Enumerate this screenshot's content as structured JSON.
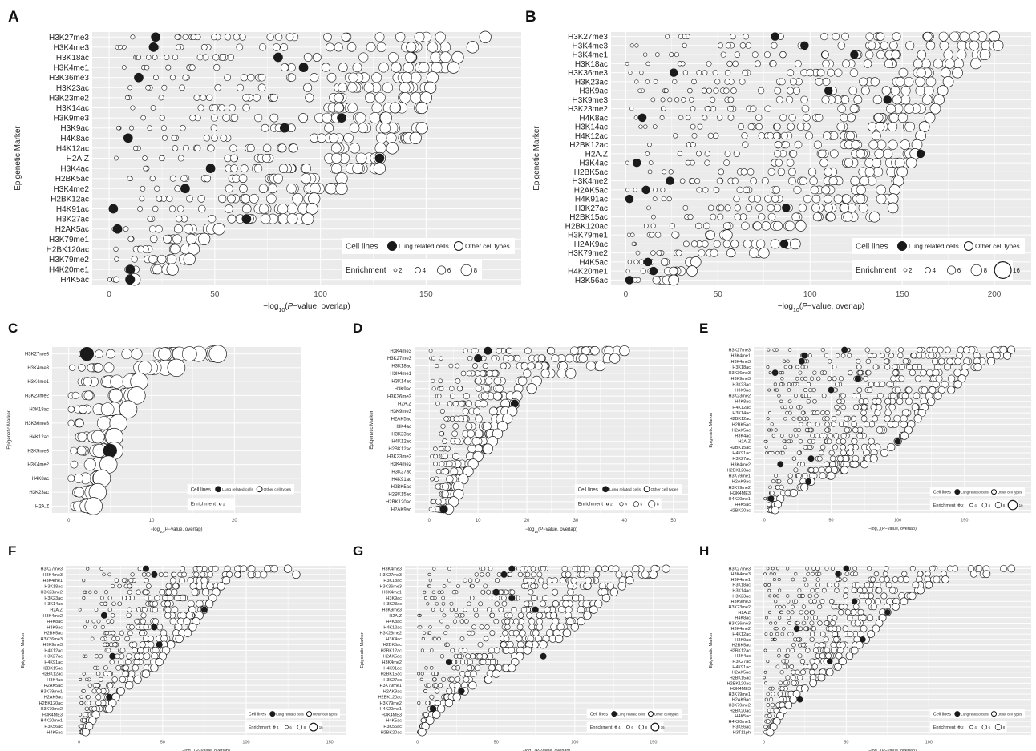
{
  "figure": {
    "panel_letters": [
      "A",
      "B",
      "C",
      "D",
      "E",
      "F",
      "G",
      "H"
    ],
    "xlabel_prefix": "−log",
    "xlabel_sub": "10",
    "xlabel_open": "(",
    "xlabel_p": "P",
    "xlabel_suffix": "−value, overlap)",
    "ylabel": "Epigenetic Marker",
    "legend_title": "Cell lines",
    "legend_lung": "Lung related cells",
    "legend_other": "Other cell types",
    "enrichment_title": "Enrichment",
    "colors": {
      "bg": "#ebebeb",
      "grid": "#ffffff",
      "lung_fill": "#1a1a1a",
      "other_fill": "#ffffff",
      "stroke": "#1a1a1a",
      "tick_text": "#4d4d4d"
    }
  },
  "chart_data": [
    {
      "panel": "A",
      "type": "scatter",
      "markers": [
        "H3K27me3",
        "H3K4me3",
        "H3K18ac",
        "H3K4me1",
        "H3K36me3",
        "H3K23ac",
        "H3K23me2",
        "H3K14ac",
        "H3K9me3",
        "H3K9ac",
        "H4K8ac",
        "H4K12ac",
        "H2A.Z",
        "H3K4ac",
        "H2BK5ac",
        "H3K4me2",
        "H2BK12ac",
        "H4K91ac",
        "H3K27ac",
        "H2AK5ac",
        "H3K79me1",
        "H2BK120ac",
        "H3K79me2",
        "H4K20me1",
        "H4K5ac"
      ],
      "max_x": [
        178,
        172,
        165,
        163,
        153,
        152,
        150,
        148,
        131,
        148,
        145,
        134,
        128,
        128,
        110,
        110,
        97,
        96,
        94,
        52,
        45,
        40,
        38,
        30,
        12
      ],
      "lung_x": [
        22,
        21,
        80,
        92,
        14,
        0,
        0,
        0,
        110,
        83,
        9,
        0,
        128,
        48,
        0,
        36,
        0,
        2,
        65,
        4,
        0,
        0,
        0,
        10,
        10
      ],
      "xlim": [
        -8,
        195
      ],
      "xticks": [
        0,
        50,
        100,
        150
      ],
      "enrichment": [
        2,
        4,
        6,
        8
      ]
    },
    {
      "panel": "B",
      "type": "scatter",
      "markers": [
        "H3K27me3",
        "H3K4me3",
        "H3K4me1",
        "H3K18ac",
        "H3K36me3",
        "H3K23ac",
        "H3K9ac",
        "H3K9me3",
        "H3K23me2",
        "H4K8ac",
        "H3K14ac",
        "H4K12ac",
        "H2BK12ac",
        "H2A.Z",
        "H3K4ac",
        "H2BK5ac",
        "H3K4me2",
        "H2AK5ac",
        "H4K91ac",
        "H3K27ac",
        "H2BK15ac",
        "H2BK120ac",
        "H3K79me1",
        "H2AK9ac",
        "H3K79me2",
        "H4K5ac",
        "H4K20me1",
        "H3K56ac"
      ],
      "max_x": [
        200,
        202,
        195,
        190,
        180,
        175,
        172,
        170,
        168,
        165,
        162,
        160,
        158,
        157,
        155,
        150,
        148,
        146,
        145,
        145,
        135,
        95,
        55,
        92,
        75,
        38,
        36,
        26
      ],
      "lung_x": [
        81,
        97,
        124,
        0,
        26,
        0,
        110,
        142,
        0,
        9,
        0,
        0,
        0,
        160,
        6,
        0,
        24,
        11,
        2,
        87,
        0,
        0,
        0,
        86,
        0,
        12,
        15,
        2
      ],
      "xlim": [
        -8,
        220
      ],
      "xticks": [
        0,
        50,
        100,
        150,
        200
      ],
      "enrichment": [
        2,
        4,
        6,
        8,
        16
      ]
    },
    {
      "panel": "C",
      "type": "scatter",
      "markers": [
        "H3K27me3",
        "H3K4me3",
        "H3K4me1",
        "H3K23me2",
        "H3K18ac",
        "H3K36me3",
        "H4K12ac",
        "H3K9me3",
        "H3K4me2",
        "H4K8ac",
        "H3K23ac",
        "H2A.Z"
      ],
      "max_x": [
        18,
        13,
        8.5,
        8.2,
        7.2,
        6,
        5.5,
        5.5,
        4.8,
        4,
        3.5,
        3
      ],
      "lung_x": [
        2.2,
        0,
        0,
        0,
        0,
        0,
        0,
        5,
        0,
        0,
        0,
        0
      ],
      "xlim": [
        -2,
        28
      ],
      "xticks": [
        0,
        10,
        20
      ],
      "enrichment": [
        2
      ]
    },
    {
      "panel": "D",
      "type": "scatter",
      "markers": [
        "H3K4me3",
        "H3K27me3",
        "H3K18ac",
        "H3K4me1",
        "H3K14ac",
        "H3K9ac",
        "H3K36me3",
        "H2A.Z",
        "H3K9me3",
        "H2AK5ac",
        "H3K4ac",
        "H3K23ac",
        "H4K12ac",
        "H2BK12ac",
        "H3K23me2",
        "H3K4me2",
        "H3K27ac",
        "H4K91ac",
        "H2BK5ac",
        "H2BK15ac",
        "H2BK120ac",
        "H2AK9ac"
      ],
      "max_x": [
        40,
        38,
        35,
        29,
        22,
        21,
        18,
        17.5,
        17,
        16,
        15,
        14,
        13,
        12,
        10,
        9,
        8,
        7,
        6,
        6,
        5,
        4
      ],
      "lung_x": [
        12,
        10,
        0,
        0,
        0,
        0,
        0,
        17.5,
        0,
        0,
        0,
        0,
        0,
        0,
        0,
        0,
        0,
        0,
        0,
        0,
        0,
        3
      ],
      "xlim": [
        -3,
        53
      ],
      "xticks": [
        0,
        10,
        20,
        30,
        40,
        50
      ],
      "enrichment": [
        2,
        4,
        6,
        8
      ]
    },
    {
      "panel": "E",
      "type": "scatter",
      "markers": [
        "H3K27me3",
        "H3K4me1",
        "H3K4me3",
        "H3K18ac",
        "H3K36me3",
        "H3K9me3",
        "H3K23ac",
        "H3K9ac",
        "H3K23me2",
        "H4K8ac",
        "H4K12ac",
        "H3K14ac",
        "H2BK12ac",
        "H2BK5ac",
        "H2AK5ac",
        "H3K4ac",
        "H2A.Z",
        "H2BK15ac",
        "H4K91ac",
        "H3K27ac",
        "H3K4me2",
        "H2BK120ac",
        "H3K79me1",
        "H2AK9ac",
        "H3K79me2",
        "H3K4ME3",
        "H4K20me1",
        "H4K5ac",
        "H2BK20ac"
      ],
      "max_x": [
        185,
        182,
        170,
        160,
        150,
        148,
        145,
        140,
        130,
        125,
        120,
        118,
        115,
        110,
        108,
        105,
        100,
        95,
        90,
        82,
        75,
        60,
        50,
        35,
        30,
        22,
        12,
        10,
        8
      ],
      "lung_x": [
        60,
        30,
        28,
        0,
        8,
        70,
        0,
        50,
        0,
        0,
        0,
        0,
        0,
        0,
        0,
        0,
        100,
        0,
        0,
        35,
        12,
        0,
        0,
        33,
        0,
        0,
        5,
        0,
        0
      ],
      "xlim": [
        -8,
        200
      ],
      "xticks": [
        0,
        50,
        100,
        150
      ],
      "enrichment": [
        2,
        4,
        6,
        8,
        16
      ]
    },
    {
      "panel": "F",
      "type": "scatter",
      "markers": [
        "H3K27me3",
        "H3K4me3",
        "H3K4me1",
        "H3K18ac",
        "H3K23me2",
        "H3K23ac",
        "H3K14ac",
        "H2A.Z",
        "H3K4me2",
        "H4K8ac",
        "H3K9ac",
        "H2BK5ac",
        "H3K36me3",
        "H3K9me3",
        "H4K12ac",
        "H3K27ac",
        "H4K91ac",
        "H2BK15ac",
        "H2BK12ac",
        "H3K4ac",
        "H2AK5ac",
        "H3K79me1",
        "H2AK9ac",
        "H2BK120ac",
        "H3K79me2",
        "H3K4ME3",
        "H4K20me1",
        "H3K56ac",
        "H4K5ac"
      ],
      "max_x": [
        125,
        130,
        88,
        85,
        82,
        80,
        78,
        75,
        72,
        70,
        68,
        65,
        60,
        55,
        52,
        50,
        48,
        45,
        40,
        35,
        30,
        25,
        22,
        20,
        18,
        10,
        8,
        6,
        4
      ],
      "lung_x": [
        40,
        45,
        0,
        0,
        0,
        0,
        0,
        75,
        15,
        0,
        45,
        0,
        0,
        48,
        0,
        20,
        0,
        0,
        0,
        0,
        0,
        0,
        18,
        0,
        0,
        0,
        0,
        0,
        0
      ],
      "xlim": [
        -8,
        160
      ],
      "xticks": [
        0,
        50,
        100,
        150
      ],
      "enrichment": [
        4,
        6,
        8,
        16
      ]
    },
    {
      "panel": "G",
      "type": "scatter",
      "markers": [
        "H3K4me3",
        "H3K27me3",
        "H3K18ac",
        "H3K36me3",
        "H3K4me1",
        "H3K9ac",
        "H3K23ac",
        "H3K9me3",
        "H2A.Z",
        "H4K8ac",
        "H4K12ac",
        "H3K23me2",
        "H3K4ac",
        "H2BK5ac",
        "H2BK12ac",
        "H2AK5ac",
        "H3K4me2",
        "H4K91ac",
        "H2BK15ac",
        "H3K27ac",
        "H3K79me1",
        "H2AK9ac",
        "H2BK120ac",
        "H3K79me2",
        "H4K20me1",
        "H3K4ME3",
        "H4K5ac",
        "H3K56ac",
        "H2BK20ac"
      ],
      "max_x": [
        158,
        150,
        135,
        130,
        125,
        120,
        115,
        112,
        108,
        104,
        100,
        95,
        90,
        80,
        70,
        65,
        62,
        60,
        50,
        45,
        35,
        30,
        25,
        20,
        15,
        12,
        8,
        5,
        3
      ],
      "lung_x": [
        60,
        55,
        0,
        0,
        50,
        60,
        0,
        75,
        0,
        0,
        0,
        0,
        0,
        0,
        0,
        80,
        20,
        0,
        0,
        0,
        0,
        28,
        0,
        0,
        10,
        0,
        0,
        0,
        0
      ],
      "xlim": [
        -8,
        172
      ],
      "xticks": [
        0,
        50,
        100,
        150
      ],
      "enrichment": [
        4,
        6,
        8,
        16
      ]
    },
    {
      "panel": "H",
      "type": "scatter",
      "markers": [
        "H3K27me3",
        "H3K4me3",
        "H3K4me1",
        "H3K18ac",
        "H3K14ac",
        "H3K23ac",
        "H3K9me3",
        "H3K23me2",
        "H2A.Z",
        "H4K8ac",
        "H3K36me3",
        "H3K4me2",
        "H4K12ac",
        "H3K9ac",
        "H2BK5ac",
        "H2BK12ac",
        "H3K4ac",
        "H3K27ac",
        "H4K91ac",
        "H2AK5ac",
        "H2BK15ac",
        "H2BK120ac",
        "H3K4ME3",
        "H3K79me1",
        "H2AK9ac",
        "H3K79me2",
        "H2BK20ac",
        "H4K5ac",
        "H4K20me1",
        "H3K56ac",
        "H3T11ph"
      ],
      "max_x": [
        150,
        135,
        110,
        100,
        95,
        90,
        85,
        80,
        75,
        72,
        70,
        68,
        65,
        62,
        58,
        55,
        52,
        48,
        45,
        40,
        35,
        30,
        25,
        20,
        18,
        15,
        12,
        10,
        8,
        6,
        4
      ],
      "lung_x": [
        50,
        45,
        0,
        0,
        0,
        0,
        55,
        0,
        75,
        0,
        0,
        20,
        0,
        60,
        0,
        0,
        0,
        40,
        0,
        0,
        0,
        0,
        0,
        0,
        22,
        0,
        0,
        0,
        0,
        0,
        0
      ],
      "xlim": [
        -6,
        162
      ],
      "xticks": [
        0,
        50,
        100
      ],
      "enrichment": [
        2,
        4,
        6,
        8
      ]
    }
  ]
}
